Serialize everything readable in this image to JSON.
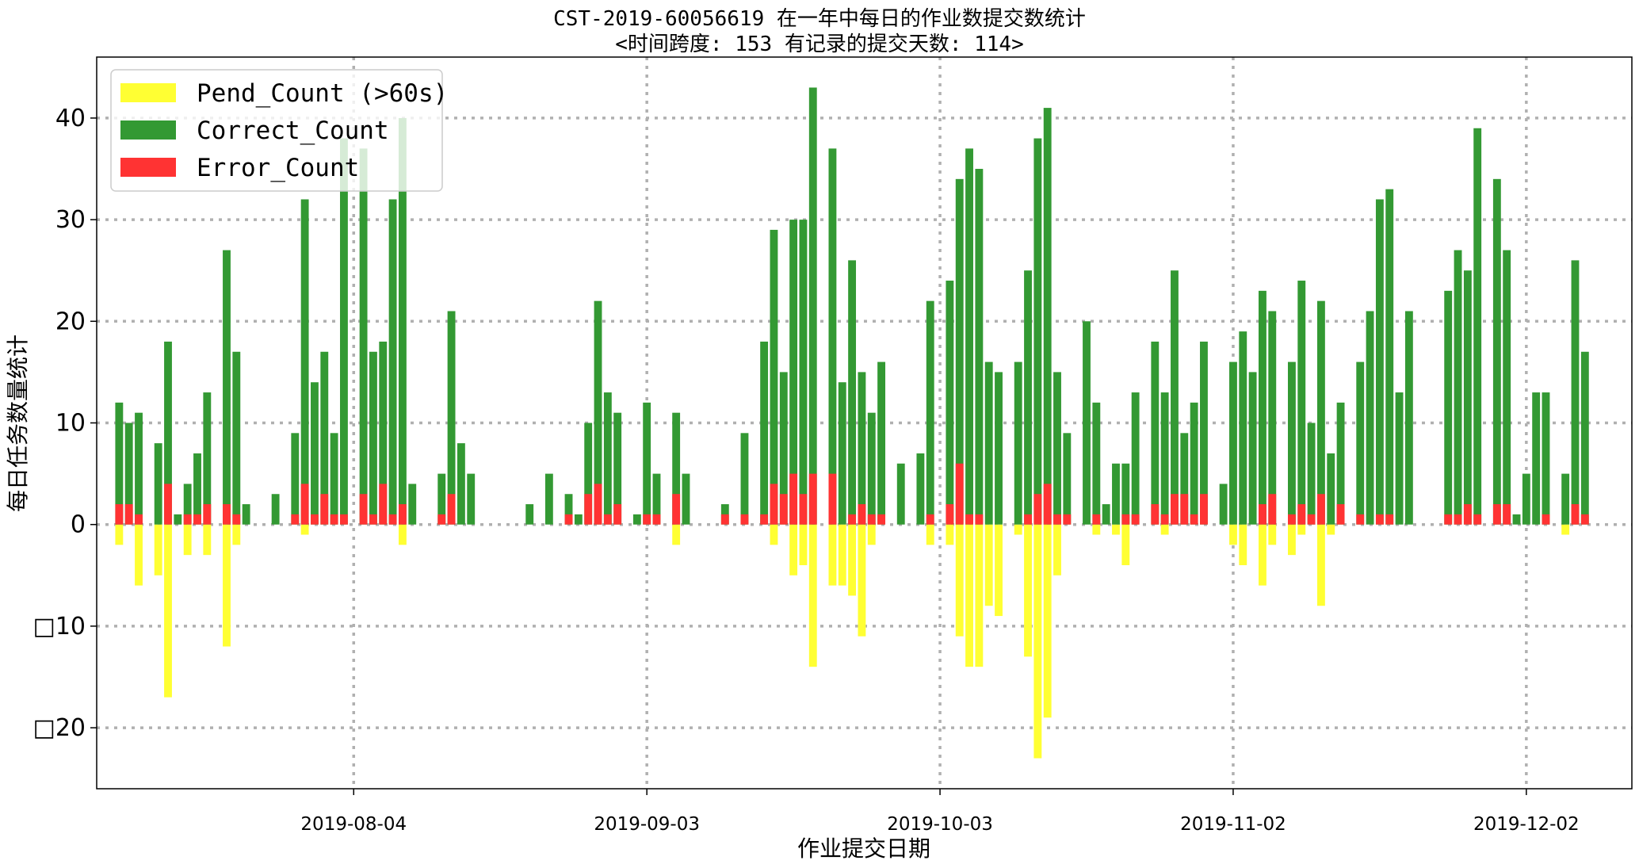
{
  "chart_data": {
    "type": "bar",
    "title": "CST-2019-60056619 在一年中每日的作业数提交数统计",
    "subtitle": "<时间跨度: 153  有记录的提交天数: 114>",
    "xlabel": "作业提交日期",
    "ylabel": "每日任务数量统计",
    "x_tick_labels": [
      "2019-08-04",
      "2019-09-03",
      "2019-10-03",
      "2019-11-02",
      "2019-12-02"
    ],
    "x_tick_days": [
      0,
      30,
      60,
      90,
      120
    ],
    "x_range_days": [
      -26.3,
      130.8
    ],
    "y_tick_labels": [
      "□20",
      "□10",
      "0",
      "10",
      "20",
      "30",
      "40"
    ],
    "y_tick_values": [
      -20,
      -10,
      0,
      10,
      20,
      30,
      40
    ],
    "ylim": [
      -26,
      46
    ],
    "grid": true,
    "legend_position": "top-left",
    "colors": {
      "pend": "#ffff33",
      "correct": "#339933",
      "error": "#ff3333",
      "grid": "#b0b0b0"
    },
    "series": [
      {
        "name": "Pend_Count (>60s)",
        "key": "pend"
      },
      {
        "name": "Correct_Count",
        "key": "correct"
      },
      {
        "name": "Error_Count",
        "key": "error"
      }
    ],
    "bars": [
      {
        "d": -24,
        "c": 12,
        "e": 2,
        "p": -2
      },
      {
        "d": -23,
        "c": 10,
        "e": 2,
        "p": 0
      },
      {
        "d": -22,
        "c": 11,
        "e": 1,
        "p": -6
      },
      {
        "d": -20,
        "c": 8,
        "e": 0,
        "p": -5
      },
      {
        "d": -19,
        "c": 18,
        "e": 4,
        "p": -17
      },
      {
        "d": -18,
        "c": 1,
        "e": 0,
        "p": 0
      },
      {
        "d": -17,
        "c": 4,
        "e": 1,
        "p": -3
      },
      {
        "d": -16,
        "c": 7,
        "e": 1,
        "p": 0
      },
      {
        "d": -15,
        "c": 13,
        "e": 2,
        "p": -3
      },
      {
        "d": -13,
        "c": 27,
        "e": 2,
        "p": -12
      },
      {
        "d": -12,
        "c": 17,
        "e": 1,
        "p": -2
      },
      {
        "d": -11,
        "c": 2,
        "e": 0,
        "p": 0
      },
      {
        "d": -8,
        "c": 3,
        "e": 0,
        "p": 0
      },
      {
        "d": -6,
        "c": 9,
        "e": 1,
        "p": 0
      },
      {
        "d": -5,
        "c": 32,
        "e": 4,
        "p": -1
      },
      {
        "d": -4,
        "c": 14,
        "e": 1,
        "p": 0
      },
      {
        "d": -3,
        "c": 17,
        "e": 3,
        "p": 0
      },
      {
        "d": -2,
        "c": 9,
        "e": 1,
        "p": 0
      },
      {
        "d": -1,
        "c": 38,
        "e": 1,
        "p": 0
      },
      {
        "d": 1,
        "c": 37,
        "e": 3,
        "p": 0
      },
      {
        "d": 2,
        "c": 17,
        "e": 1,
        "p": 0
      },
      {
        "d": 3,
        "c": 18,
        "e": 4,
        "p": 0
      },
      {
        "d": 4,
        "c": 32,
        "e": 1,
        "p": 0
      },
      {
        "d": 5,
        "c": 40,
        "e": 2,
        "p": -2
      },
      {
        "d": 6,
        "c": 4,
        "e": 0,
        "p": 0
      },
      {
        "d": 9,
        "c": 5,
        "e": 1,
        "p": 0
      },
      {
        "d": 10,
        "c": 21,
        "e": 3,
        "p": 0
      },
      {
        "d": 11,
        "c": 8,
        "e": 0,
        "p": 0
      },
      {
        "d": 12,
        "c": 5,
        "e": 0,
        "p": 0
      },
      {
        "d": 18,
        "c": 2,
        "e": 0,
        "p": 0
      },
      {
        "d": 20,
        "c": 5,
        "e": 0,
        "p": 0
      },
      {
        "d": 22,
        "c": 3,
        "e": 1,
        "p": 0
      },
      {
        "d": 23,
        "c": 1,
        "e": 0,
        "p": 0
      },
      {
        "d": 24,
        "c": 10,
        "e": 3,
        "p": 0
      },
      {
        "d": 25,
        "c": 22,
        "e": 4,
        "p": 0
      },
      {
        "d": 26,
        "c": 13,
        "e": 1,
        "p": 0
      },
      {
        "d": 27,
        "c": 11,
        "e": 2,
        "p": 0
      },
      {
        "d": 29,
        "c": 1,
        "e": 0,
        "p": 0
      },
      {
        "d": 30,
        "c": 12,
        "e": 1,
        "p": 0
      },
      {
        "d": 31,
        "c": 5,
        "e": 1,
        "p": 0
      },
      {
        "d": 33,
        "c": 11,
        "e": 3,
        "p": -2
      },
      {
        "d": 34,
        "c": 5,
        "e": 0,
        "p": 0
      },
      {
        "d": 38,
        "c": 2,
        "e": 1,
        "p": 0
      },
      {
        "d": 40,
        "c": 9,
        "e": 1,
        "p": 0
      },
      {
        "d": 42,
        "c": 18,
        "e": 1,
        "p": 0
      },
      {
        "d": 43,
        "c": 29,
        "e": 4,
        "p": -2
      },
      {
        "d": 44,
        "c": 15,
        "e": 3,
        "p": 0
      },
      {
        "d": 45,
        "c": 30,
        "e": 5,
        "p": -5
      },
      {
        "d": 46,
        "c": 30,
        "e": 3,
        "p": -4
      },
      {
        "d": 47,
        "c": 43,
        "e": 5,
        "p": -14
      },
      {
        "d": 49,
        "c": 37,
        "e": 5,
        "p": -6
      },
      {
        "d": 50,
        "c": 14,
        "e": 0,
        "p": -6
      },
      {
        "d": 51,
        "c": 26,
        "e": 1,
        "p": -7
      },
      {
        "d": 52,
        "c": 15,
        "e": 2,
        "p": -11
      },
      {
        "d": 53,
        "c": 11,
        "e": 1,
        "p": -2
      },
      {
        "d": 54,
        "c": 16,
        "e": 1,
        "p": 0
      },
      {
        "d": 56,
        "c": 6,
        "e": 0,
        "p": 0
      },
      {
        "d": 58,
        "c": 7,
        "e": 0,
        "p": 0
      },
      {
        "d": 59,
        "c": 22,
        "e": 1,
        "p": -2
      },
      {
        "d": 61,
        "c": 24,
        "e": 2,
        "p": -2
      },
      {
        "d": 62,
        "c": 34,
        "e": 6,
        "p": -11
      },
      {
        "d": 63,
        "c": 37,
        "e": 1,
        "p": -14
      },
      {
        "d": 64,
        "c": 35,
        "e": 1,
        "p": -14
      },
      {
        "d": 65,
        "c": 16,
        "e": 0,
        "p": -8
      },
      {
        "d": 66,
        "c": 15,
        "e": 0,
        "p": -9
      },
      {
        "d": 68,
        "c": 16,
        "e": 0,
        "p": -1
      },
      {
        "d": 69,
        "c": 25,
        "e": 1,
        "p": -13
      },
      {
        "d": 70,
        "c": 38,
        "e": 3,
        "p": -23
      },
      {
        "d": 71,
        "c": 41,
        "e": 4,
        "p": -19
      },
      {
        "d": 72,
        "c": 15,
        "e": 1,
        "p": -5
      },
      {
        "d": 73,
        "c": 9,
        "e": 1,
        "p": 0
      },
      {
        "d": 75,
        "c": 20,
        "e": 0,
        "p": 0
      },
      {
        "d": 76,
        "c": 12,
        "e": 1,
        "p": -1
      },
      {
        "d": 77,
        "c": 2,
        "e": 0,
        "p": 0
      },
      {
        "d": 78,
        "c": 6,
        "e": 0,
        "p": -1
      },
      {
        "d": 79,
        "c": 6,
        "e": 1,
        "p": -4
      },
      {
        "d": 80,
        "c": 13,
        "e": 1,
        "p": 0
      },
      {
        "d": 82,
        "c": 18,
        "e": 2,
        "p": 0
      },
      {
        "d": 83,
        "c": 13,
        "e": 1,
        "p": -1
      },
      {
        "d": 84,
        "c": 25,
        "e": 3,
        "p": 0
      },
      {
        "d": 85,
        "c": 9,
        "e": 3,
        "p": 0
      },
      {
        "d": 86,
        "c": 12,
        "e": 1,
        "p": 0
      },
      {
        "d": 87,
        "c": 18,
        "e": 3,
        "p": 0
      },
      {
        "d": 89,
        "c": 4,
        "e": 0,
        "p": 0
      },
      {
        "d": 90,
        "c": 16,
        "e": 0,
        "p": -2
      },
      {
        "d": 91,
        "c": 19,
        "e": 0,
        "p": -4
      },
      {
        "d": 92,
        "c": 15,
        "e": 0,
        "p": 0
      },
      {
        "d": 93,
        "c": 23,
        "e": 2,
        "p": -6
      },
      {
        "d": 94,
        "c": 21,
        "e": 3,
        "p": -2
      },
      {
        "d": 96,
        "c": 16,
        "e": 1,
        "p": -3
      },
      {
        "d": 97,
        "c": 24,
        "e": 2,
        "p": -1
      },
      {
        "d": 98,
        "c": 10,
        "e": 1,
        "p": 0
      },
      {
        "d": 99,
        "c": 22,
        "e": 3,
        "p": -8
      },
      {
        "d": 100,
        "c": 7,
        "e": 0,
        "p": -1
      },
      {
        "d": 101,
        "c": 12,
        "e": 2,
        "p": 0
      },
      {
        "d": 103,
        "c": 16,
        "e": 1,
        "p": 0
      },
      {
        "d": 104,
        "c": 21,
        "e": 0,
        "p": 0
      },
      {
        "d": 105,
        "c": 32,
        "e": 1,
        "p": 0
      },
      {
        "d": 106,
        "c": 33,
        "e": 1,
        "p": 0
      },
      {
        "d": 107,
        "c": 13,
        "e": 0,
        "p": 0
      },
      {
        "d": 108,
        "c": 21,
        "e": 0,
        "p": 0
      },
      {
        "d": 112,
        "c": 23,
        "e": 1,
        "p": 0
      },
      {
        "d": 113,
        "c": 27,
        "e": 1,
        "p": 0
      },
      {
        "d": 114,
        "c": 25,
        "e": 2,
        "p": 0
      },
      {
        "d": 115,
        "c": 39,
        "e": 1,
        "p": 0
      },
      {
        "d": 117,
        "c": 34,
        "e": 2,
        "p": 0
      },
      {
        "d": 118,
        "c": 27,
        "e": 2,
        "p": 0
      },
      {
        "d": 119,
        "c": 1,
        "e": 0,
        "p": 0
      },
      {
        "d": 120,
        "c": 5,
        "e": 0,
        "p": 0
      },
      {
        "d": 121,
        "c": 13,
        "e": 0,
        "p": 0
      },
      {
        "d": 122,
        "c": 13,
        "e": 1,
        "p": 0
      },
      {
        "d": 124,
        "c": 5,
        "e": 0,
        "p": -1
      },
      {
        "d": 125,
        "c": 26,
        "e": 2,
        "p": 0
      },
      {
        "d": 126,
        "c": 17,
        "e": 1,
        "p": 0
      }
    ]
  }
}
